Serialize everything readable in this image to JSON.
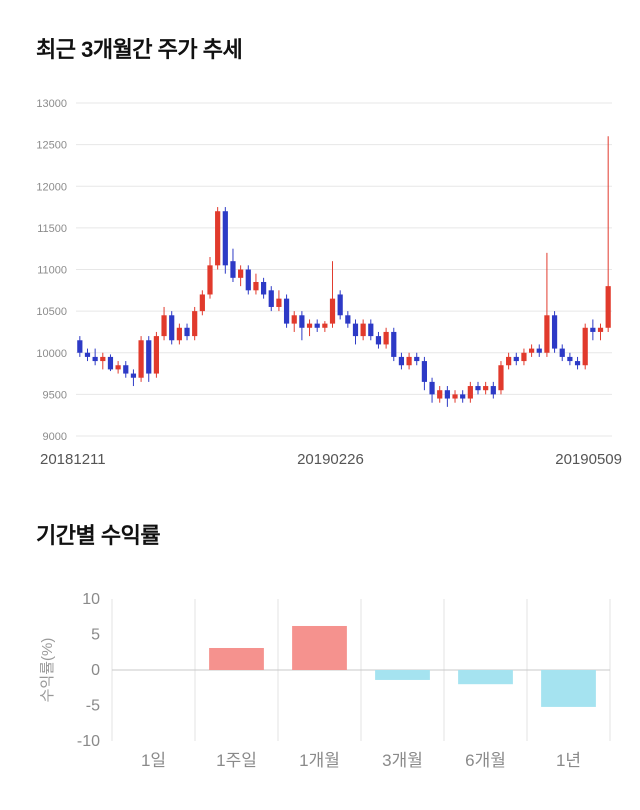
{
  "chart_data": [
    {
      "type": "candlestick",
      "title": "최근 3개월간 주가 추세",
      "ylim": [
        9000,
        13000
      ],
      "yticks": [
        9000,
        9500,
        10000,
        10500,
        11000,
        11500,
        12000,
        12500,
        13000
      ],
      "xticklabels": [
        "20181211",
        "20190226",
        "20190509"
      ],
      "colors": {
        "up": "#e13a2c",
        "down": "#2d3ac6",
        "grid": "#e7e7e7",
        "tick_text": "#8c8c8c"
      },
      "candles": [
        [
          10150,
          10200,
          9950,
          10000
        ],
        [
          10000,
          10050,
          9900,
          9950
        ],
        [
          9950,
          10050,
          9850,
          9900
        ],
        [
          9900,
          10000,
          9800,
          9950
        ],
        [
          9950,
          9980,
          9780,
          9800
        ],
        [
          9800,
          9900,
          9750,
          9850
        ],
        [
          9850,
          9900,
          9700,
          9750
        ],
        [
          9750,
          9800,
          9600,
          9700
        ],
        [
          9700,
          10200,
          9650,
          10150
        ],
        [
          10150,
          10200,
          9650,
          9750
        ],
        [
          9750,
          10250,
          9700,
          10200
        ],
        [
          10200,
          10550,
          10150,
          10450
        ],
        [
          10450,
          10500,
          10100,
          10150
        ],
        [
          10150,
          10350,
          10100,
          10300
        ],
        [
          10300,
          10350,
          10150,
          10200
        ],
        [
          10200,
          10550,
          10150,
          10500
        ],
        [
          10500,
          10750,
          10450,
          10700
        ],
        [
          10700,
          11150,
          10650,
          11050
        ],
        [
          11050,
          11750,
          11000,
          11700
        ],
        [
          11700,
          11750,
          10950,
          11050
        ],
        [
          11100,
          11250,
          10850,
          10900
        ],
        [
          10900,
          11050,
          10800,
          11000
        ],
        [
          11000,
          11050,
          10700,
          10750
        ],
        [
          10750,
          10950,
          10700,
          10850
        ],
        [
          10850,
          10900,
          10650,
          10700
        ],
        [
          10750,
          10800,
          10500,
          10550
        ],
        [
          10550,
          10750,
          10500,
          10650
        ],
        [
          10650,
          10700,
          10300,
          10350
        ],
        [
          10350,
          10500,
          10250,
          10450
        ],
        [
          10450,
          10500,
          10150,
          10300
        ],
        [
          10300,
          10400,
          10200,
          10350
        ],
        [
          10350,
          10400,
          10250,
          10300
        ],
        [
          10300,
          10380,
          10250,
          10350
        ],
        [
          10350,
          11100,
          10300,
          10650
        ],
        [
          10700,
          10750,
          10400,
          10450
        ],
        [
          10450,
          10500,
          10300,
          10350
        ],
        [
          10350,
          10400,
          10100,
          10200
        ],
        [
          10200,
          10400,
          10150,
          10350
        ],
        [
          10350,
          10400,
          10150,
          10200
        ],
        [
          10200,
          10250,
          10050,
          10100
        ],
        [
          10100,
          10300,
          10050,
          10250
        ],
        [
          10250,
          10300,
          9900,
          9950
        ],
        [
          9950,
          10000,
          9800,
          9850
        ],
        [
          9850,
          10000,
          9800,
          9950
        ],
        [
          9950,
          10000,
          9850,
          9900
        ],
        [
          9900,
          9950,
          9550,
          9650
        ],
        [
          9650,
          9700,
          9400,
          9500
        ],
        [
          9450,
          9600,
          9400,
          9550
        ],
        [
          9550,
          9600,
          9350,
          9450
        ],
        [
          9450,
          9550,
          9400,
          9500
        ],
        [
          9500,
          9550,
          9400,
          9450
        ],
        [
          9450,
          9650,
          9400,
          9600
        ],
        [
          9600,
          9650,
          9500,
          9550
        ],
        [
          9550,
          9650,
          9500,
          9600
        ],
        [
          9600,
          9650,
          9450,
          9500
        ],
        [
          9550,
          9900,
          9500,
          9850
        ],
        [
          9850,
          10000,
          9800,
          9950
        ],
        [
          9950,
          10000,
          9850,
          9900
        ],
        [
          9900,
          10050,
          9850,
          10000
        ],
        [
          10000,
          10100,
          9950,
          10050
        ],
        [
          10050,
          10100,
          9950,
          10000
        ],
        [
          10000,
          11200,
          9950,
          10450
        ],
        [
          10450,
          10500,
          10000,
          10050
        ],
        [
          10050,
          10100,
          9900,
          9950
        ],
        [
          9950,
          10000,
          9850,
          9900
        ],
        [
          9900,
          9950,
          9800,
          9850
        ],
        [
          9850,
          10350,
          9800,
          10300
        ],
        [
          10300,
          10400,
          10150,
          10250
        ],
        [
          10250,
          10350,
          10150,
          10300
        ],
        [
          10300,
          12600,
          10250,
          10800
        ]
      ]
    },
    {
      "type": "bar",
      "title": "기간별 수익률",
      "ylabel": "수익률(%)",
      "categories": [
        "1일",
        "1주일",
        "1개월",
        "3개월",
        "6개월",
        "1년"
      ],
      "values": [
        0,
        3.1,
        6.2,
        -1.4,
        -2.0,
        -5.2
      ],
      "ylim": [
        -10,
        10
      ],
      "yticks": [
        10,
        5,
        0,
        -5,
        -10
      ],
      "legend": false,
      "grid": "vertical",
      "colors": {
        "positive": "#f5928e",
        "negative": "#a5e3f0",
        "grid": "#e3e3e3",
        "zero_line": "#c9c9c9",
        "tick_text": "#8a8a8a",
        "ylabel_text": "#999999"
      }
    }
  ]
}
